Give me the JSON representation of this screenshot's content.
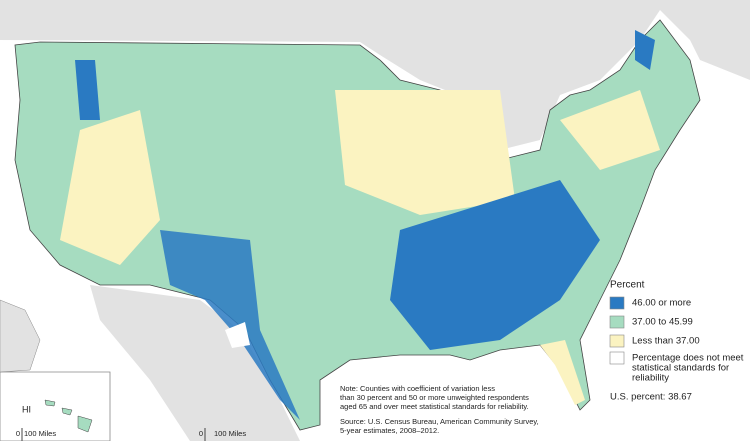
{
  "legend": {
    "title": "Percent",
    "items": [
      {
        "label": "46.00 or more",
        "color": "#2a7ac2"
      },
      {
        "label": "37.00 to 45.99",
        "color": "#a6dcc0"
      },
      {
        "label": "Less than 37.00",
        "color": "#fbf3c1"
      },
      {
        "label": [
          "Percentage does not meet",
          "statistical standards for",
          "reliability"
        ],
        "color": "#ffffff"
      }
    ]
  },
  "us_percent": "U.S. percent: 38.67",
  "note": [
    "Note: Counties with coefficient of variation less",
    "than 30 percent and 50 or more unweighted respondents",
    "aged 65 and over meet statistical standards for reliability."
  ],
  "source": [
    "Source: U.S. Census Bureau, American Community Survey,",
    "5-year estimates, 2008–2012."
  ],
  "inset_label": "HI",
  "scales": [
    {
      "zero": "0",
      "label": "100 Miles"
    },
    {
      "zero": "0",
      "label": "100 Miles"
    }
  ]
}
